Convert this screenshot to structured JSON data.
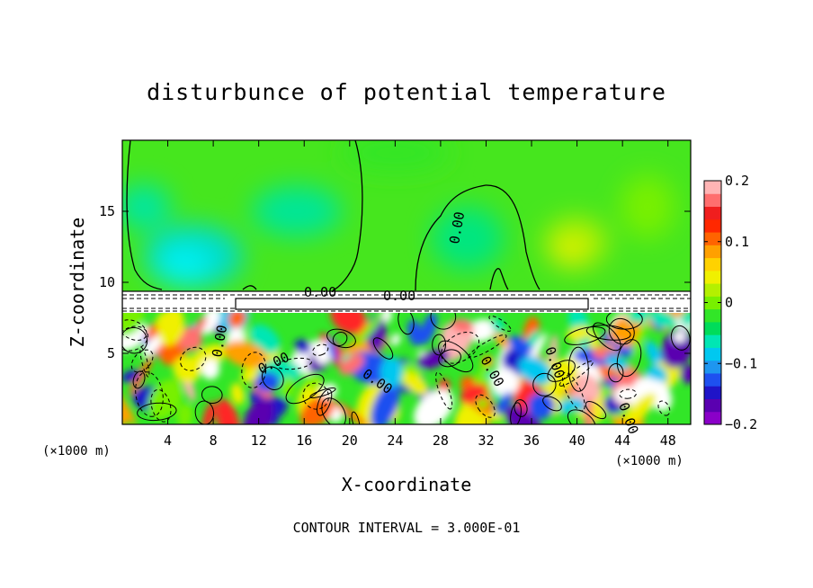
{
  "chart_data": {
    "type": "heatmap",
    "title": "disturbunce of potential temperature",
    "xlabel": "X-coordinate",
    "ylabel": "Z-coordinate",
    "x_unit_left": "(×1000 m)",
    "x_unit_right": "(×1000 m)",
    "xlim": [
      0,
      50
    ],
    "ylim": [
      0,
      20
    ],
    "x_ticks": [
      4,
      8,
      12,
      16,
      20,
      24,
      28,
      32,
      36,
      40,
      44,
      48
    ],
    "y_ticks": [
      5,
      10,
      15
    ],
    "colorbar": {
      "range": [
        -0.2,
        0.2
      ],
      "ticks": [
        0.2,
        0.1,
        0,
        -0.1,
        -0.2
      ],
      "tick_labels": [
        "0.2",
        "0.1",
        "0",
        "−0.1",
        "−0.2"
      ],
      "colors": [
        "#8a00c8",
        "#5a00b0",
        "#1f14c8",
        "#1e50f0",
        "#1e96f0",
        "#00c8f0",
        "#00e6b4",
        "#00dc5a",
        "#32e628",
        "#78f000",
        "#b4f000",
        "#f0f000",
        "#ffd200",
        "#ffa000",
        "#ff6400",
        "#ff2800",
        "#f01e1e",
        "#ff6e6e",
        "#ffb4b4"
      ]
    },
    "contour_labels": [
      "0.00",
      "0.00",
      "0.00",
      "0.00",
      "0.00",
      "0.00",
      "0.00",
      "0.00",
      "0.00"
    ],
    "footer": "CONTOUR INTERVAL = 3.000E-01"
  }
}
